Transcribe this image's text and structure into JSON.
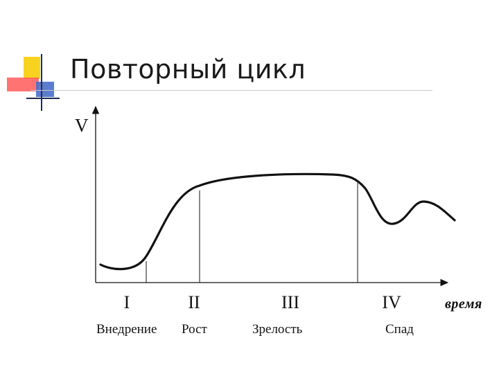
{
  "slide": {
    "title": "Повторный цикл",
    "colors": {
      "yellow": "#f7d320",
      "red": "#ff5a5a",
      "blue": "#4a6fc8",
      "dark": "#1f2b52"
    }
  },
  "diagram": {
    "y_axis_label": "V",
    "x_axis_label": "время",
    "stages": [
      {
        "numeral": "I",
        "name": "Внедрение"
      },
      {
        "numeral": "II",
        "name": "Рост"
      },
      {
        "numeral": "III",
        "name": "Зрелость"
      },
      {
        "numeral": "IV",
        "name": "Спад"
      }
    ]
  }
}
